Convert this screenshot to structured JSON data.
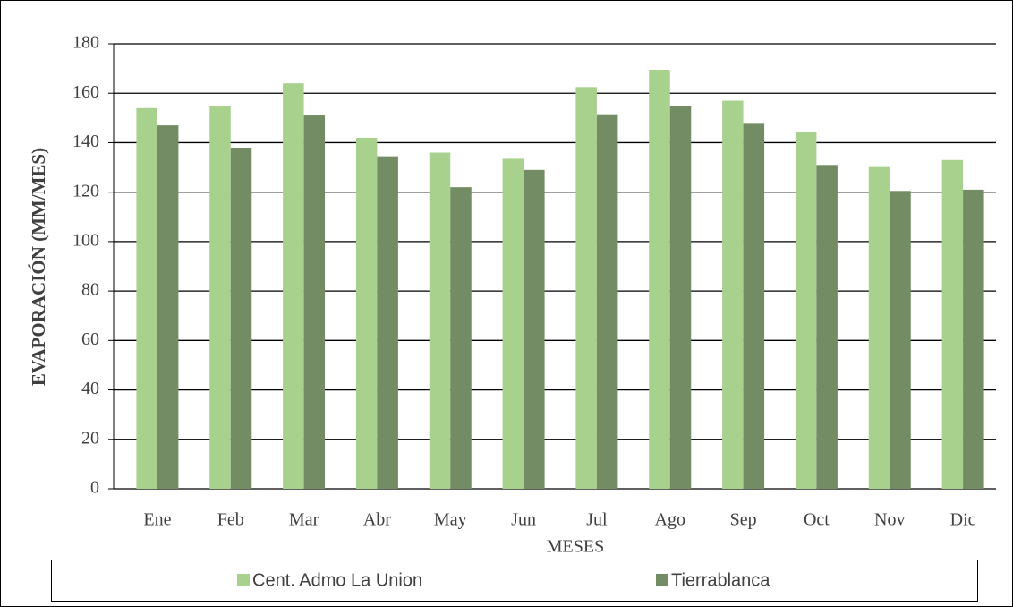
{
  "chart_data": {
    "type": "bar",
    "x_label": "MESES",
    "y_label": "EVAPORACIÓN (MM/MES)",
    "categories": [
      "Ene",
      "Feb",
      "Mar",
      "Abr",
      "May",
      "Jun",
      "Jul",
      "Ago",
      "Sep",
      "Oct",
      "Nov",
      "Dic"
    ],
    "series": [
      {
        "name": "Cent. Admo La Union",
        "color": "#a9d18e",
        "values": [
          154,
          155,
          164,
          142,
          136,
          133.5,
          162.5,
          169.5,
          157,
          144.5,
          130.5,
          133
        ]
      },
      {
        "name": "Tierrablanca",
        "color": "#748c63",
        "values": [
          147,
          138,
          151,
          134.5,
          122,
          129,
          151.5,
          155,
          148,
          131,
          120.5,
          121
        ]
      }
    ],
    "ylim": [
      0,
      180
    ],
    "yticks": [
      0,
      20,
      40,
      60,
      80,
      100,
      120,
      140,
      160,
      180
    ],
    "grid": true,
    "legend": "bottom"
  }
}
